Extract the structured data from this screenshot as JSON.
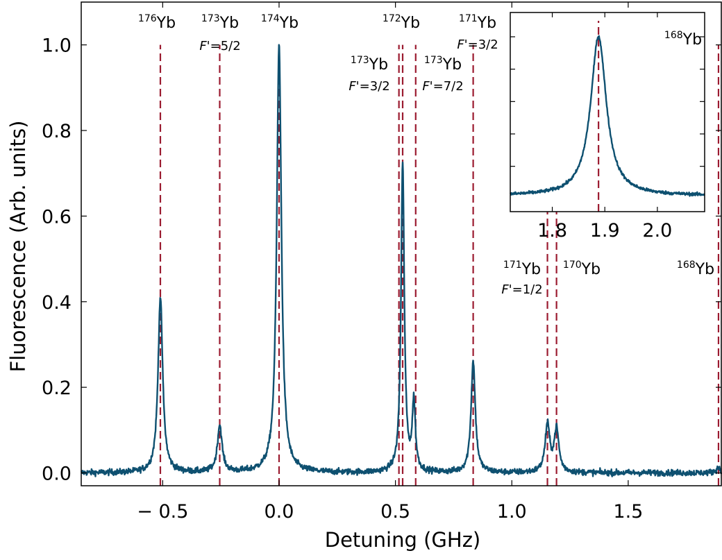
{
  "chart_data": [
    {
      "type": "line",
      "xlabel": "Detuning (GHz)",
      "ylabel": "Fluorescence (Arb. units)",
      "xlim": [
        -0.85,
        1.9
      ],
      "ylim": [
        -0.03,
        1.1
      ],
      "x_ticks": [
        -0.5,
        0.0,
        0.5,
        1.0,
        1.5
      ],
      "x_tick_labels": [
        "− 0.5",
        "0.0",
        "0.5",
        "1.0",
        "1.5"
      ],
      "y_ticks": [
        0.0,
        0.2,
        0.4,
        0.6,
        0.8,
        1.0
      ],
      "y_tick_labels": [
        "0.0",
        "0.2",
        "0.4",
        "0.6",
        "0.8",
        "1.0"
      ],
      "grid": false,
      "line_color": "#0e5070",
      "marker_line_color": "#9b1b30",
      "peaks": [
        {
          "x": -0.51,
          "amplitude": 0.41,
          "width": 0.012
        },
        {
          "x": -0.255,
          "amplitude": 0.11,
          "width": 0.012
        },
        {
          "x": 0.0,
          "amplitude": 1.0,
          "width": 0.012
        },
        {
          "x": 0.531,
          "amplitude": 0.72,
          "width": 0.0085
        },
        {
          "x": 0.579,
          "amplitude": 0.16,
          "width": 0.008
        },
        {
          "x": 0.834,
          "amplitude": 0.26,
          "width": 0.011
        },
        {
          "x": 1.153,
          "amplitude": 0.11,
          "width": 0.012
        },
        {
          "x": 1.192,
          "amplitude": 0.1,
          "width": 0.012
        },
        {
          "x": 1.888,
          "amplitude": 0.012,
          "width": 0.012
        }
      ],
      "noise_level": 0.007,
      "isotope_lines": [
        {
          "x": -0.51,
          "mass": "176",
          "element": "Yb",
          "fprime": ""
        },
        {
          "x": -0.255,
          "mass": "173",
          "element": "Yb",
          "fprime": "=5/2"
        },
        {
          "x": 0.0,
          "mass": "174",
          "element": "Yb",
          "fprime": ""
        },
        {
          "x": 0.515,
          "mass": "173",
          "element": "Yb",
          "fprime": "=3/2"
        },
        {
          "x": 0.531,
          "mass": "172",
          "element": "Yb",
          "fprime": ""
        },
        {
          "x": 0.587,
          "mass": "173",
          "element": "Yb",
          "fprime": "=7/2"
        },
        {
          "x": 0.834,
          "mass": "171",
          "element": "Yb",
          "fprime": "=3/2"
        },
        {
          "x": 1.153,
          "mass": "171",
          "element": "Yb",
          "fprime": "=1/2"
        },
        {
          "x": 1.192,
          "mass": "170",
          "element": "Yb",
          "fprime": ""
        },
        {
          "x": 1.888,
          "mass": "168",
          "element": "Yb",
          "fprime": ""
        }
      ]
    },
    {
      "type": "line",
      "role": "inset",
      "xlim": [
        1.72,
        2.09
      ],
      "ylim": [
        -0.1,
        1.15
      ],
      "x_ticks": [
        1.8,
        1.9,
        2.0
      ],
      "x_tick_labels": [
        "1.8",
        "1.9",
        "2.0"
      ],
      "line_color": "#0e5070",
      "marker_line_color": "#9b1b30",
      "peak": {
        "x": 1.888,
        "amplitude": 1.0,
        "width": 0.018
      },
      "noise_level": 0.01,
      "isotope_line": {
        "x": 1.888,
        "mass": "168",
        "element": "Yb"
      }
    }
  ]
}
